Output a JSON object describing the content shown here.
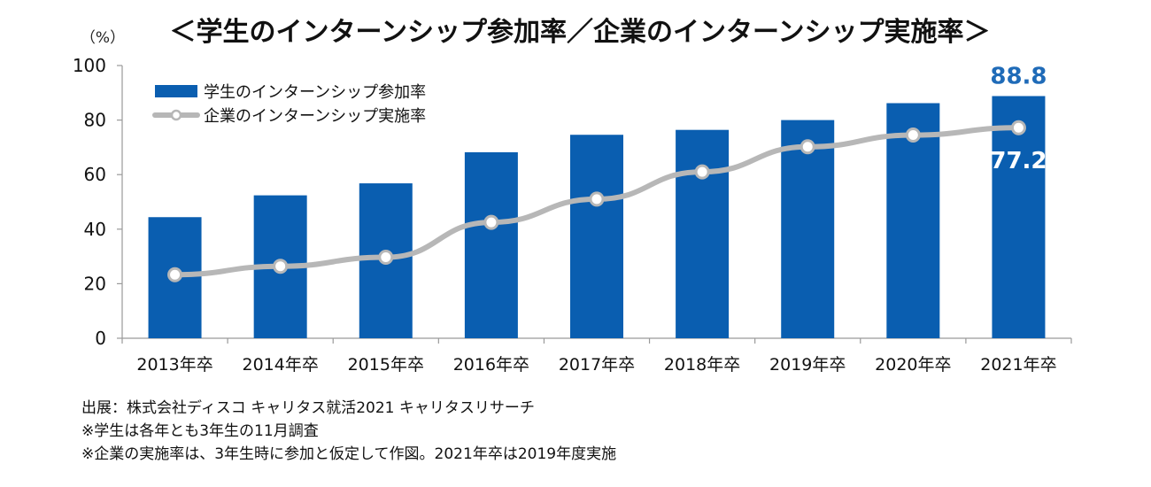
{
  "chart_data": {
    "type": "bar",
    "title": "＜学生のインターンシップ参加率／企業のインターンシップ実施率＞",
    "unit": "（%）",
    "categories": [
      "2013年卒",
      "2014年卒",
      "2015年卒",
      "2016年卒",
      "2017年卒",
      "2018年卒",
      "2019年卒",
      "2020年卒",
      "2021年卒"
    ],
    "ylim": [
      0,
      100
    ],
    "yticks": [
      0,
      20,
      40,
      60,
      80,
      100
    ],
    "series": [
      {
        "name": "学生のインターンシップ参加率",
        "type": "bar",
        "color": "#0a5eb0",
        "values": [
          44.4,
          52.4,
          56.8,
          68.2,
          74.6,
          76.4,
          80.0,
          86.2,
          88.8
        ]
      },
      {
        "name": "企業のインターンシップ実施率",
        "type": "line",
        "color": "#b7b7b7",
        "values": [
          23.3,
          26.4,
          29.7,
          42.5,
          51.0,
          61.0,
          70.2,
          74.5,
          77.2
        ]
      }
    ],
    "annotations": [
      {
        "series": 0,
        "index": 8,
        "text": "88.8"
      },
      {
        "series": 1,
        "index": 8,
        "text": "77.2"
      }
    ],
    "legend": "top-left",
    "grid": false
  },
  "notes": [
    "出展：株式会社ディスコ キャリタス就活2021 キャリタスリサーチ",
    "※学生は各年とも3年生の11月調査",
    "※企業の実施率は、3年生時に参加と仮定して作図。2021年卒は2019年度実施"
  ]
}
